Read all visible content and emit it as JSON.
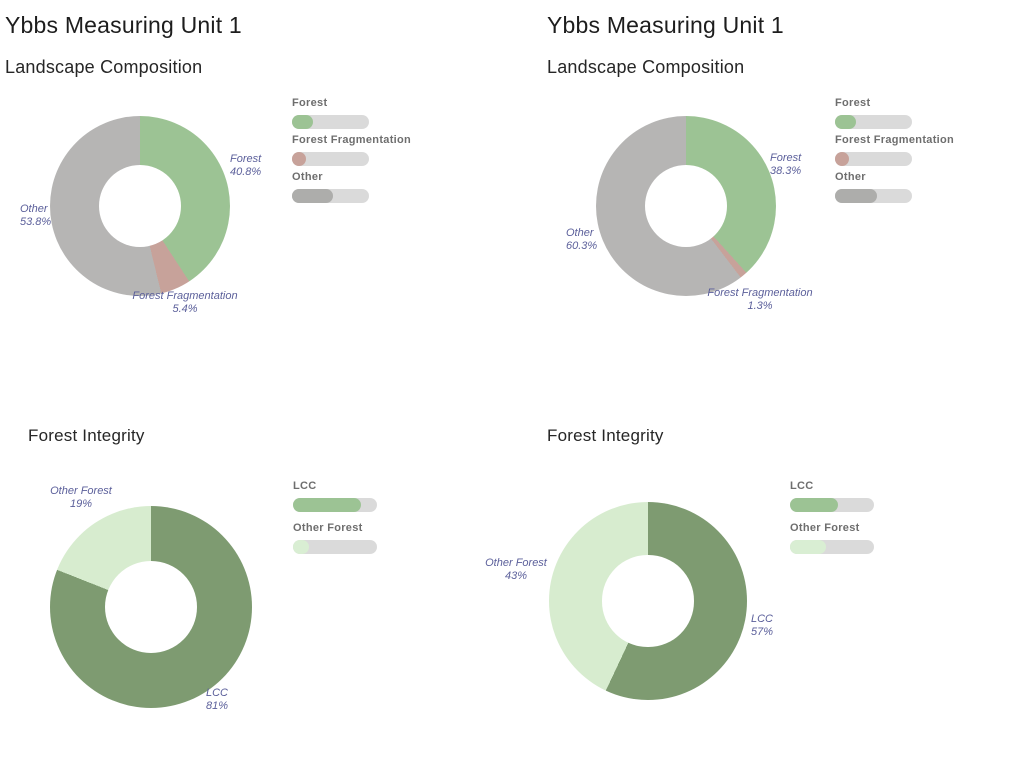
{
  "colors": {
    "forest_green": "#9cc394",
    "fragmentation_pink": "#c7a29a",
    "other_gray": "#b6b5b4",
    "lcc_green": "#7e9b71",
    "other_forest_green": "#d7eccf",
    "legend_track": "#dadada",
    "legend_other_fill": "#adadab",
    "slice_label_color": "#5c609b",
    "legend_label_color": "#6e6e6e",
    "title_color": "#1d1d1d"
  },
  "chart_data": [
    {
      "type": "pie",
      "subtype": "donut",
      "title": "Ybbs Measuring Unit 1",
      "subtitle": "Landscape Composition",
      "categories": [
        "Forest",
        "Forest Fragmentation",
        "Other"
      ],
      "values": [
        40.8,
        5.4,
        53.8
      ],
      "labels": [
        "40.8%",
        "5.4%",
        "53.8%"
      ],
      "colors": [
        "#9cc394",
        "#c7a29a",
        "#b6b5b4"
      ],
      "start_angle_deg": 0,
      "direction": "clockwise",
      "legend_position": "right",
      "legend": {
        "items": [
          {
            "label": "Forest",
            "fill_pct": 27,
            "fill_color": "#9cc394"
          },
          {
            "label": "Forest Fragmentation",
            "fill_pct": 18,
            "fill_color": "#c7a29a"
          },
          {
            "label": "Other",
            "fill_pct": 53,
            "fill_color": "#adadab"
          }
        ]
      }
    },
    {
      "type": "pie",
      "subtype": "donut",
      "title": "Ybbs Measuring Unit 1",
      "subtitle": "Landscape Composition",
      "categories": [
        "Forest",
        "Forest Fragmentation",
        "Other"
      ],
      "values": [
        38.3,
        1.3,
        60.3
      ],
      "labels": [
        "38.3%",
        "1.3%",
        "60.3%"
      ],
      "colors": [
        "#9cc394",
        "#c7a29a",
        "#b6b5b4"
      ],
      "start_angle_deg": 0,
      "direction": "clockwise",
      "legend_position": "right",
      "legend": {
        "items": [
          {
            "label": "Forest",
            "fill_pct": 27,
            "fill_color": "#9cc394"
          },
          {
            "label": "Forest Fragmentation",
            "fill_pct": 18,
            "fill_color": "#c7a29a"
          },
          {
            "label": "Other",
            "fill_pct": 54,
            "fill_color": "#adadab"
          }
        ]
      }
    },
    {
      "type": "pie",
      "subtype": "donut",
      "title": "Forest Integrity",
      "categories": [
        "LCC",
        "Other Forest"
      ],
      "values": [
        81,
        19
      ],
      "labels": [
        "81%",
        "19%"
      ],
      "colors": [
        "#7e9b71",
        "#d7eccf"
      ],
      "start_angle_deg": 0,
      "direction": "clockwise",
      "legend_position": "right",
      "legend": {
        "items": [
          {
            "label": "LCC",
            "fill_pct": 81,
            "fill_color": "#9cc394"
          },
          {
            "label": "Other Forest",
            "fill_pct": 19,
            "fill_color": "#d9eed3"
          }
        ]
      }
    },
    {
      "type": "pie",
      "subtype": "donut",
      "title": "Forest Integrity",
      "categories": [
        "LCC",
        "Other Forest"
      ],
      "values": [
        57,
        43
      ],
      "labels": [
        "57%",
        "43%"
      ],
      "colors": [
        "#7e9b71",
        "#d7eccf"
      ],
      "start_angle_deg": 0,
      "direction": "clockwise",
      "legend_position": "right",
      "legend": {
        "items": [
          {
            "label": "LCC",
            "fill_pct": 57,
            "fill_color": "#9cc394"
          },
          {
            "label": "Other Forest",
            "fill_pct": 43,
            "fill_color": "#d9eed3"
          }
        ]
      }
    }
  ]
}
